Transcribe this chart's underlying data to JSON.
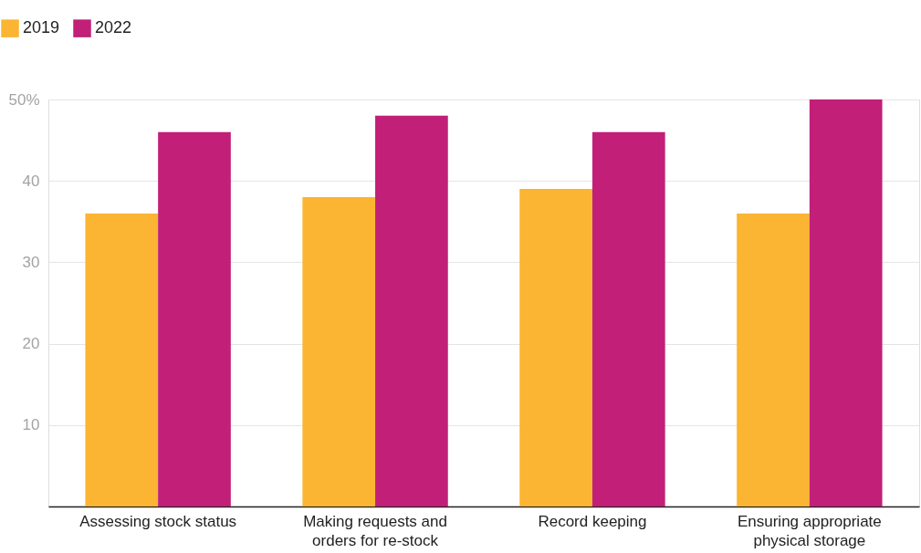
{
  "chart_data": {
    "type": "bar",
    "categories": [
      "Assessing stock status",
      "Making requests and orders for re-stock",
      "Record keeping",
      "Ensuring appropriate physical storage"
    ],
    "series": [
      {
        "name": "2019",
        "color": "#fbb532",
        "values": [
          36,
          38,
          39,
          36
        ]
      },
      {
        "name": "2022",
        "color": "#c11f78",
        "values": [
          46,
          48,
          46,
          50
        ]
      }
    ],
    "ylim": [
      0,
      50
    ],
    "yticks": [
      10,
      20,
      30,
      40,
      {
        "value": 50,
        "label": "50%"
      }
    ],
    "grid": "y",
    "legend": "top left"
  }
}
